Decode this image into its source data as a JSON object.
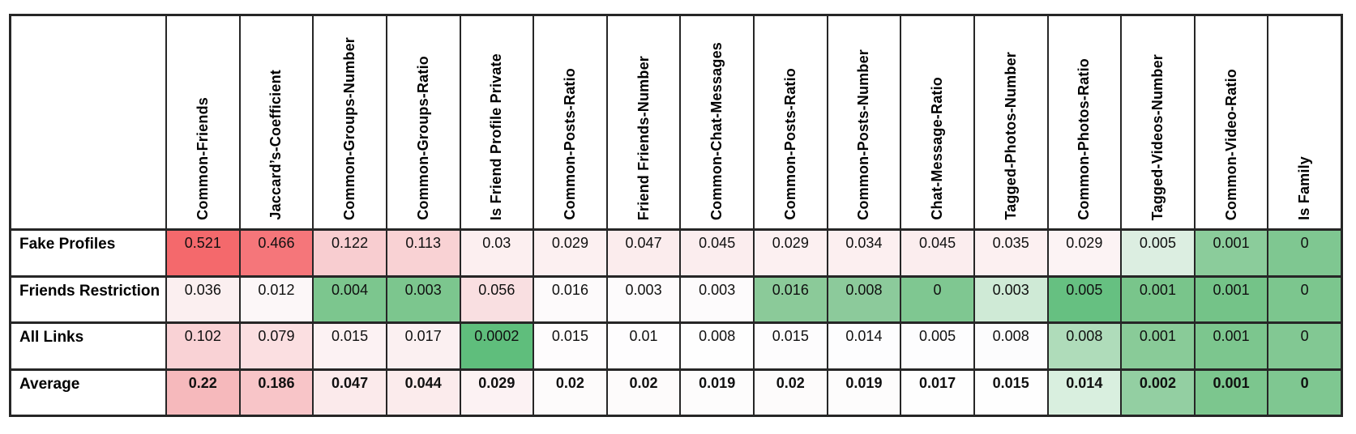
{
  "table": {
    "corner_label": "",
    "columns": [
      "Common-Friends",
      "Jaccard’s-Coefficient",
      "Common-Groups-Number",
      "Common-Groups-Ratio",
      "Is Friend Profile Private",
      "Common-Posts-Ratio",
      "Friend Friends-Number",
      "Common-Chat-Messages",
      "Common-Posts-Ratio",
      "Common-Posts-Number",
      "Chat-Message-Ratio",
      "Tagged-Photos-Number",
      "Common-Photos-Ratio",
      "Tagged-Videos-Number",
      "Common-Video-Ratio",
      "Is Family"
    ],
    "rows": [
      {
        "label": "Fake Profiles",
        "bold_values": false,
        "values": [
          "0.521",
          "0.466",
          "0.122",
          "0.113",
          "0.03",
          "0.029",
          "0.047",
          "0.045",
          "0.029",
          "0.034",
          "0.045",
          "0.035",
          "0.029",
          "0.005",
          "0.001",
          "0"
        ],
        "colors": [
          "#F4696C",
          "#F5767A",
          "#F8CDD0",
          "#F9D2D4",
          "#FCEFF0",
          "#FCF0F1",
          "#FBECED",
          "#FBEDEE",
          "#FCF0F1",
          "#FCEFF0",
          "#FBEDEE",
          "#FCF0F1",
          "#FCF3F4",
          "#DCEEE1",
          "#8BCC9B",
          "#7FC791"
        ]
      },
      {
        "label": "Friends Restriction",
        "bold_values": false,
        "values": [
          "0.036",
          "0.012",
          "0.004",
          "0.003",
          "0.056",
          "0.016",
          "0.003",
          "0.003",
          "0.016",
          "0.008",
          "0",
          "0.003",
          "0.005",
          "0.001",
          "0.001",
          "0"
        ],
        "colors": [
          "#FBEFF0",
          "#FCF7F8",
          "#7CC68E",
          "#7CC68E",
          "#F9DFE1",
          "#FDFAFB",
          "#FDFBFC",
          "#FDFBFC",
          "#8BCA99",
          "#8CCA9B",
          "#7FC791",
          "#CFEAD6",
          "#66C081",
          "#79C58B",
          "#74C388",
          "#7CC68E"
        ]
      },
      {
        "label": "All Links",
        "bold_values": false,
        "values": [
          "0.102",
          "0.079",
          "0.015",
          "0.017",
          "0.0002",
          "0.015",
          "0.01",
          "0.008",
          "0.015",
          "0.014",
          "0.005",
          "0.008",
          "0.008",
          "0.001",
          "0.001",
          "0"
        ],
        "colors": [
          "#F9D2D5",
          "#FBDFE1",
          "#FCF2F3",
          "#FBF0F1",
          "#5FBE7C",
          "#FEFCFD",
          "#FEFDFE",
          "#FEFEFE",
          "#FDFCFD",
          "#FDFDFE",
          "#FDFDFE",
          "#FCFCFD",
          "#AFDCBA",
          "#89CB98",
          "#7CC68E",
          "#82C893"
        ]
      },
      {
        "label": "Average",
        "bold_values": true,
        "values": [
          "0.22",
          "0.186",
          "0.047",
          "0.044",
          "0.029",
          "0.02",
          "0.02",
          "0.019",
          "0.02",
          "0.019",
          "0.017",
          "0.015",
          "0.014",
          "0.002",
          "0.001",
          "0"
        ],
        "colors": [
          "#F6B9BC",
          "#F8C5C8",
          "#FBEAEB",
          "#FBEBEC",
          "#FCF2F3",
          "#FDFBFB",
          "#FDFBFB",
          "#FDFCFC",
          "#FDFBFB",
          "#FDFCFC",
          "#FEFEFE",
          "#FEFEFE",
          "#D9EFDF",
          "#93CFA2",
          "#7CC68E",
          "#7FC791"
        ]
      }
    ]
  },
  "chart_data": {
    "type": "heatmap",
    "title": "",
    "columns": [
      "Common-Friends",
      "Jaccard’s-Coefficient",
      "Common-Groups-Number",
      "Common-Groups-Ratio",
      "Is Friend Profile Private",
      "Common-Posts-Ratio",
      "Friend Friends-Number",
      "Common-Chat-Messages",
      "Common-Posts-Ratio",
      "Common-Posts-Number",
      "Chat-Message-Ratio",
      "Tagged-Photos-Number",
      "Common-Photos-Ratio",
      "Tagged-Videos-Number",
      "Common-Video-Ratio",
      "Is Family"
    ],
    "row_labels": [
      "Fake Profiles",
      "Friends Restriction",
      "All Links",
      "Average"
    ],
    "values": [
      [
        0.521,
        0.466,
        0.122,
        0.113,
        0.03,
        0.029,
        0.047,
        0.045,
        0.029,
        0.034,
        0.045,
        0.035,
        0.029,
        0.005,
        0.001,
        0
      ],
      [
        0.036,
        0.012,
        0.004,
        0.003,
        0.056,
        0.016,
        0.003,
        0.003,
        0.016,
        0.008,
        0,
        0.003,
        0.005,
        0.001,
        0.001,
        0
      ],
      [
        0.102,
        0.079,
        0.015,
        0.017,
        0.0002,
        0.015,
        0.01,
        0.008,
        0.015,
        0.014,
        0.005,
        0.008,
        0.008,
        0.001,
        0.001,
        0
      ],
      [
        0.22,
        0.186,
        0.047,
        0.044,
        0.029,
        0.02,
        0.02,
        0.019,
        0.02,
        0.019,
        0.017,
        0.015,
        0.014,
        0.002,
        0.001,
        0
      ]
    ],
    "colormap": {
      "high_color": "#F4696C",
      "mid_color": "#FFFFFF",
      "low_color": "#5FBE7C",
      "meaning": "red = high value, white = mid, green = low value"
    },
    "grid": true,
    "border_color": "#262626"
  }
}
